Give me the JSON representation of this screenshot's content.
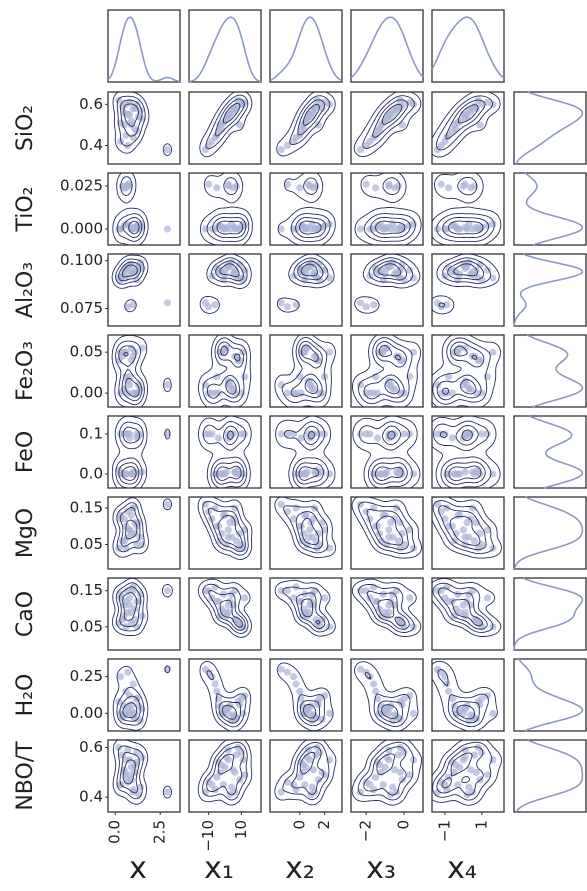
{
  "chart_data": {
    "type": "pairplot",
    "point_color": "#aab2d6",
    "contour_color": "#262d5a",
    "kde_color": "#8a9ac4",
    "columns": [
      {
        "name": "x",
        "xlim": [
          -0.4,
          3.6
        ],
        "xticks": [
          {
            "value": 0,
            "label": "0.0"
          },
          2.5
        ],
        "values": [
          0.3,
          0.5,
          0.8,
          1.0,
          1.2,
          0.6,
          0.9,
          1.4,
          0.2,
          0.7,
          1.1,
          1.3,
          0.4,
          0.8,
          1.0,
          1.5,
          0.5,
          0.9,
          1.2,
          0.3,
          0.7,
          1.1,
          2.9,
          0.6
        ]
      },
      {
        "name": "x₁",
        "xlim": [
          -22,
          22
        ],
        "xticks": [
          {
            "value": -10,
            "label": "−10"
          },
          10
        ],
        "values": [
          -8,
          -3,
          2,
          6,
          10,
          -5,
          0,
          4,
          8,
          -10,
          -2,
          3,
          7,
          12,
          -6,
          1,
          5,
          9,
          -4,
          -1,
          2,
          6,
          -12,
          11
        ]
      },
      {
        "name": "x₂",
        "xlim": [
          -2.4,
          3.4
        ],
        "xticks": [
          0,
          2
        ],
        "values": [
          -0.5,
          0.2,
          0.8,
          1.2,
          1.6,
          0.0,
          0.5,
          1.0,
          1.4,
          -1.0,
          0.3,
          0.9,
          1.3,
          2.0,
          -0.3,
          0.6,
          1.1,
          1.5,
          0.1,
          0.4,
          0.7,
          1.8,
          -1.5,
          2.4
        ]
      },
      {
        "name": "x₃",
        "xlim": [
          -2.8,
          1.0
        ],
        "xticks": [
          {
            "value": -2,
            "label": "−2"
          },
          0
        ],
        "values": [
          -1.8,
          -1.2,
          -0.8,
          -0.4,
          0.0,
          -1.5,
          -1.0,
          -0.6,
          -0.2,
          -2.0,
          -1.3,
          -0.7,
          -0.3,
          0.3,
          -1.6,
          -0.9,
          -0.5,
          -0.1,
          -1.4,
          -1.1,
          -0.8,
          -0.2,
          -2.3,
          0.5
        ]
      },
      {
        "name": "x₄",
        "xlim": [
          -1.7,
          2.2
        ],
        "xticks": [
          {
            "value": -1,
            "label": "−1"
          },
          1
        ],
        "values": [
          -1.0,
          -0.5,
          0.0,
          0.5,
          1.0,
          -0.8,
          -0.2,
          0.3,
          0.8,
          -1.2,
          -0.4,
          0.2,
          0.6,
          1.3,
          -0.9,
          0.1,
          0.4,
          0.9,
          -0.6,
          -0.3,
          0.1,
          0.7,
          -1.4,
          1.6
        ]
      }
    ],
    "rows": [
      {
        "name": "SiO₂",
        "ylim": [
          0.31,
          0.66
        ],
        "yticks": [
          0.4,
          0.6
        ],
        "values": [
          0.42,
          0.5,
          0.55,
          0.58,
          0.6,
          0.45,
          0.52,
          0.57,
          0.62,
          0.4,
          0.48,
          0.54,
          0.59,
          0.61,
          0.44,
          0.53,
          0.56,
          0.5,
          0.47,
          0.51,
          0.55,
          0.58,
          0.38,
          0.6
        ]
      },
      {
        "name": "TiO₂",
        "ylim": [
          -0.0093,
          0.0326
        ],
        "yticks": [
          {
            "value": 0,
            "label": "0.000"
          },
          0.025
        ],
        "values": [
          0.0,
          0.002,
          0.025,
          0.0,
          0.001,
          0.024,
          0.0,
          0.003,
          0.0,
          0.026,
          0.001,
          0.0,
          0.025,
          0.002,
          0.0,
          0.001,
          0.024,
          0.0,
          0.002,
          0.0,
          0.026,
          0.001,
          0.0,
          0.003
        ]
      },
      {
        "name": "Al₂O₃",
        "ylim": [
          0.0659,
          0.1035
        ],
        "yticks": [
          0.075,
          {
            "value": 0.1,
            "label": "0.100"
          }
        ],
        "values": [
          0.092,
          0.095,
          0.098,
          0.094,
          0.09,
          0.096,
          0.093,
          0.099,
          0.091,
          0.076,
          0.094,
          0.097,
          0.092,
          0.095,
          0.077,
          0.096,
          0.093,
          0.098,
          0.094,
          0.09,
          0.097,
          0.095,
          0.078,
          0.091
        ]
      },
      {
        "name": "Fe₂O₃",
        "ylim": [
          -0.017,
          0.071
        ],
        "yticks": [
          {
            "value": 0,
            "label": "0.00"
          },
          0.05
        ],
        "values": [
          0.0,
          0.05,
          0.01,
          0.045,
          0.0,
          0.02,
          0.055,
          0.005,
          0.04,
          0.0,
          0.05,
          0.01,
          0.045,
          0.02,
          0.0,
          0.055,
          0.005,
          0.04,
          0.0,
          0.05,
          0.015,
          0.0,
          0.01,
          0.05
        ]
      },
      {
        "name": "FeO",
        "ylim": [
          -0.035,
          0.145
        ],
        "yticks": [
          {
            "value": 0,
            "label": "0.0"
          },
          0.1
        ],
        "values": [
          0.1,
          0.0,
          0.09,
          0.005,
          0.1,
          0.0,
          0.0,
          0.1,
          0.01,
          0.1,
          0.0,
          0.095,
          0.0,
          0.1,
          0.0,
          0.005,
          0.1,
          0.0,
          0.09,
          0.0,
          0.1,
          0.005,
          0.1,
          0.0
        ]
      },
      {
        "name": "MgO",
        "ylim": [
          -0.017,
          0.18
        ],
        "yticks": [
          0.05,
          0.15
        ],
        "values": [
          0.12,
          0.06,
          0.09,
          0.15,
          0.05,
          0.1,
          0.13,
          0.07,
          0.04,
          0.14,
          0.08,
          0.11,
          0.06,
          0.09,
          0.15,
          0.05,
          0.12,
          0.08,
          0.1,
          0.13,
          0.07,
          0.11,
          0.16,
          0.04
        ]
      },
      {
        "name": "CaO",
        "ylim": [
          -0.014,
          0.185
        ],
        "yticks": [
          0.05,
          0.15
        ],
        "values": [
          0.13,
          0.08,
          0.11,
          0.15,
          0.05,
          0.12,
          0.09,
          0.14,
          0.06,
          0.15,
          0.1,
          0.12,
          0.07,
          0.13,
          0.16,
          0.08,
          0.11,
          0.06,
          0.12,
          0.14,
          0.09,
          0.07,
          0.15,
          0.05
        ]
      },
      {
        "name": "H₂O",
        "ylim": [
          -0.12,
          0.37
        ],
        "yticks": [
          {
            "value": 0,
            "label": "0.00"
          },
          0.25
        ],
        "values": [
          0.25,
          0.05,
          0.0,
          -0.02,
          0.1,
          0.15,
          0.02,
          -0.05,
          0.08,
          0.28,
          0.0,
          0.05,
          -0.03,
          0.12,
          0.2,
          0.03,
          -0.01,
          0.06,
          0.1,
          0.0,
          0.04,
          -0.04,
          0.3,
          0.0
        ]
      },
      {
        "name": "NBO/T",
        "ylim": [
          0.34,
          0.63
        ],
        "yticks": [
          0.4,
          0.6
        ],
        "values": [
          0.45,
          0.5,
          0.55,
          0.42,
          0.58,
          0.48,
          0.52,
          0.44,
          0.6,
          0.46,
          0.53,
          0.41,
          0.57,
          0.49,
          0.43,
          0.56,
          0.51,
          0.47,
          0.54,
          0.45,
          0.59,
          0.5,
          0.42,
          0.55
        ]
      }
    ]
  }
}
